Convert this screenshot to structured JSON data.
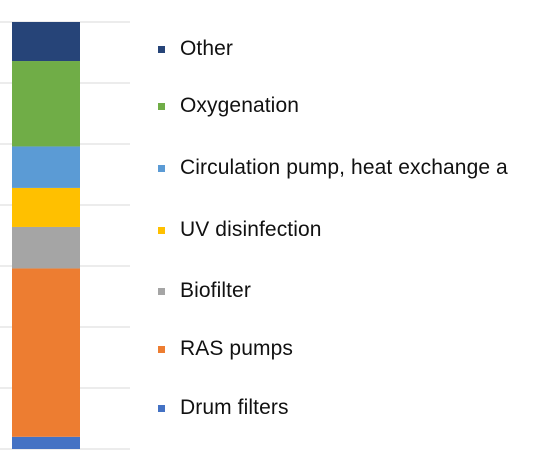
{
  "chart_data": {
    "type": "bar",
    "stacked": true,
    "orientation": "vertical",
    "grid": true,
    "legend_position": "right",
    "categories": [
      ""
    ],
    "series": [
      {
        "name": "Drum filters",
        "values": [
          2.5
        ],
        "color": "#4472C4"
      },
      {
        "name": "RAS pumps",
        "values": [
          34.5
        ],
        "color": "#ED7D31"
      },
      {
        "name": "Biofilter",
        "values": [
          8.5
        ],
        "color": "#A5A5A5"
      },
      {
        "name": "UV disinfection",
        "values": [
          8
        ],
        "color": "#FFC000"
      },
      {
        "name": "Circulation pump, heat exchange a",
        "values": [
          8.5
        ],
        "color": "#5B9BD5"
      },
      {
        "name": "Oxygenation",
        "values": [
          17.5
        ],
        "color": "#70AD47"
      },
      {
        "name": "Other",
        "values": [
          8
        ],
        "color": "#264478"
      }
    ],
    "ylim": [
      0,
      88
    ],
    "ytick_step": 12.5
  },
  "legend": {
    "items": [
      {
        "label": "Other",
        "color": "#264478"
      },
      {
        "label": "Oxygenation",
        "color": "#70AD47"
      },
      {
        "label": "Circulation pump, heat exchange a",
        "color": "#5B9BD5"
      },
      {
        "label": "UV disinfection",
        "color": "#FFC000"
      },
      {
        "label": "Biofilter",
        "color": "#A5A5A5"
      },
      {
        "label": "RAS pumps",
        "color": "#ED7D31"
      },
      {
        "label": "Drum filters",
        "color": "#4472C4"
      }
    ]
  }
}
